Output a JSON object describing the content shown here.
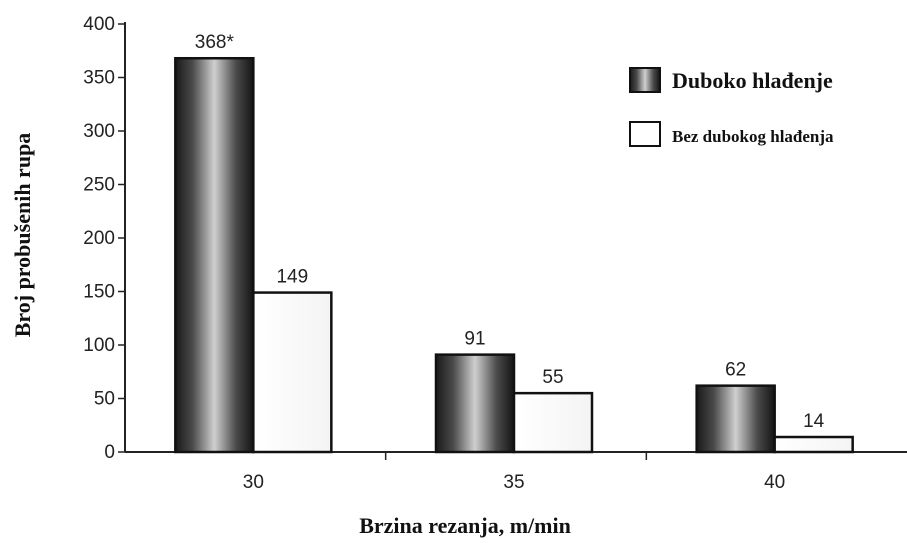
{
  "chart_data": {
    "type": "bar",
    "categories": [
      "30",
      "35",
      "40"
    ],
    "series": [
      {
        "name": "Duboko hlađenje",
        "values": [
          368,
          91,
          62
        ],
        "labels": [
          "368*",
          "91",
          "62"
        ],
        "style": "dark-gradient"
      },
      {
        "name": "Bez dubokog hlađenja",
        "values": [
          149,
          55,
          14
        ],
        "labels": [
          "149",
          "55",
          "14"
        ],
        "style": "light"
      }
    ],
    "xlabel": "Brzina rezanja, m/min",
    "ylabel": "Broj probušenih rupa",
    "ylim": [
      0,
      400
    ],
    "yticks": [
      0,
      50,
      100,
      150,
      200,
      250,
      300,
      350,
      400
    ],
    "grid": false,
    "legend_position": "top-right"
  }
}
